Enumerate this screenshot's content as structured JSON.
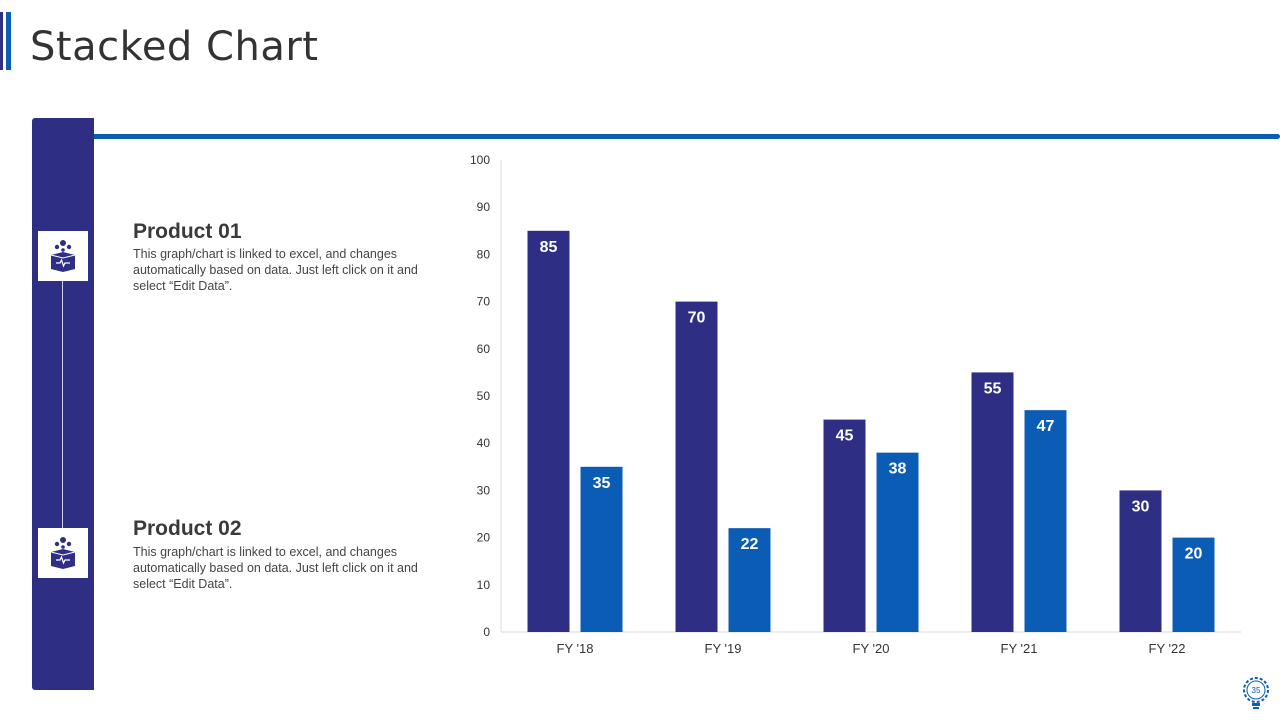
{
  "header": {
    "title": "Stacked Chart"
  },
  "products": [
    {
      "title": "Product 01",
      "description": "This graph/chart is linked to excel, and changes automatically based on data. Just left click on it and select “Edit Data”."
    },
    {
      "title": "Product 02",
      "description": "This graph/chart is linked to excel, and changes automatically based on data. Just left click on it and select “Edit Data”."
    }
  ],
  "icons": {
    "product_icon": "box-with-dots-icon",
    "footer_icon": "gear-lightbulb-icon"
  },
  "colors": {
    "series1": "#2e2f84",
    "series2": "#0b5cb5",
    "accent": "#0b5cb5"
  },
  "footer": {
    "page_number": "35"
  },
  "chart_data": {
    "type": "bar",
    "title": "",
    "categories": [
      "FY '18",
      "FY '19",
      "FY '20",
      "FY '21",
      "FY '22"
    ],
    "series": [
      {
        "name": "Product 01",
        "values": [
          85,
          70,
          45,
          55,
          30
        ]
      },
      {
        "name": "Product 02",
        "values": [
          35,
          22,
          38,
          47,
          20
        ]
      }
    ],
    "ylim": [
      0,
      100
    ],
    "yticks": [
      0,
      10,
      20,
      30,
      40,
      50,
      60,
      70,
      80,
      90,
      100
    ],
    "xlabel": "",
    "ylabel": "",
    "grid": false
  }
}
